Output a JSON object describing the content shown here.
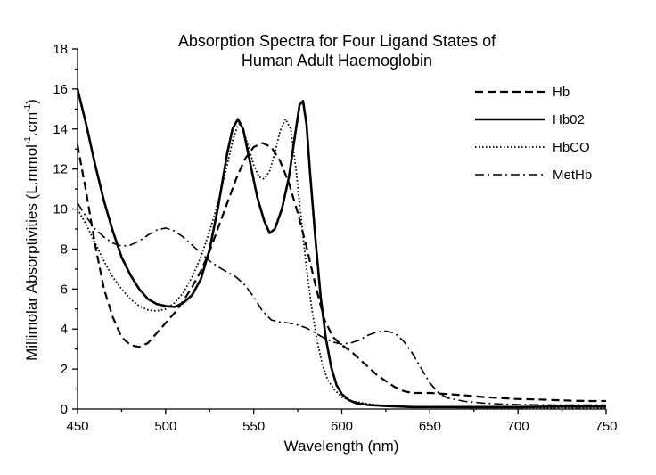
{
  "chart_data": {
    "type": "line",
    "title": [
      "Absorption Spectra for Four Ligand States of",
      "Human Adult Haemoglobin"
    ],
    "xlabel": "Wavelength (nm)",
    "ylabel": {
      "text": "Millimolar Absorptivities (L.mmol",
      "sup1": "-1",
      "mid": ".cm",
      "sup2": "-1",
      "end": ")"
    },
    "xlim": [
      450,
      750
    ],
    "ylim": [
      0,
      18
    ],
    "x_ticks": [
      450,
      500,
      550,
      600,
      650,
      700,
      750
    ],
    "y_ticks": [
      0,
      2,
      4,
      6,
      8,
      10,
      12,
      14,
      16,
      18
    ],
    "grid": false,
    "legend_position": "top-right",
    "series": [
      {
        "name": "Hb",
        "style": "dashed",
        "points": [
          [
            450,
            13.2
          ],
          [
            455,
            10.8
          ],
          [
            460,
            8.2
          ],
          [
            465,
            6.0
          ],
          [
            470,
            4.6
          ],
          [
            475,
            3.6
          ],
          [
            480,
            3.2
          ],
          [
            485,
            3.1
          ],
          [
            490,
            3.3
          ],
          [
            495,
            3.8
          ],
          [
            500,
            4.3
          ],
          [
            505,
            4.8
          ],
          [
            510,
            5.4
          ],
          [
            515,
            6.1
          ],
          [
            520,
            6.9
          ],
          [
            525,
            7.9
          ],
          [
            530,
            9.1
          ],
          [
            535,
            10.3
          ],
          [
            540,
            11.5
          ],
          [
            545,
            12.5
          ],
          [
            550,
            13.1
          ],
          [
            555,
            13.3
          ],
          [
            560,
            13.1
          ],
          [
            565,
            12.4
          ],
          [
            570,
            11.3
          ],
          [
            575,
            9.8
          ],
          [
            580,
            8.1
          ],
          [
            585,
            6.2
          ],
          [
            590,
            4.5
          ],
          [
            595,
            3.6
          ],
          [
            600,
            3.2
          ],
          [
            605,
            2.9
          ],
          [
            610,
            2.5
          ],
          [
            615,
            2.1
          ],
          [
            620,
            1.7
          ],
          [
            625,
            1.4
          ],
          [
            630,
            1.1
          ],
          [
            635,
            0.9
          ],
          [
            640,
            0.8
          ],
          [
            650,
            0.8
          ],
          [
            660,
            0.75
          ],
          [
            670,
            0.68
          ],
          [
            680,
            0.6
          ],
          [
            690,
            0.55
          ],
          [
            700,
            0.5
          ],
          [
            710,
            0.48
          ],
          [
            720,
            0.45
          ],
          [
            730,
            0.42
          ],
          [
            740,
            0.4
          ],
          [
            750,
            0.4
          ]
        ]
      },
      {
        "name": "Hb02",
        "style": "solid",
        "points": [
          [
            450,
            16.0
          ],
          [
            455,
            14.2
          ],
          [
            460,
            12.2
          ],
          [
            465,
            10.4
          ],
          [
            470,
            8.9
          ],
          [
            475,
            7.6
          ],
          [
            480,
            6.7
          ],
          [
            485,
            6.0
          ],
          [
            490,
            5.5
          ],
          [
            495,
            5.25
          ],
          [
            500,
            5.15
          ],
          [
            505,
            5.1
          ],
          [
            510,
            5.3
          ],
          [
            515,
            5.7
          ],
          [
            520,
            6.5
          ],
          [
            525,
            8.0
          ],
          [
            530,
            10.2
          ],
          [
            535,
            12.8
          ],
          [
            538,
            14.0
          ],
          [
            541,
            14.5
          ],
          [
            544,
            14.0
          ],
          [
            548,
            12.3
          ],
          [
            552,
            10.6
          ],
          [
            556,
            9.4
          ],
          [
            559,
            8.8
          ],
          [
            562,
            9.0
          ],
          [
            566,
            10.0
          ],
          [
            570,
            11.6
          ],
          [
            573,
            13.4
          ],
          [
            576,
            15.2
          ],
          [
            578,
            15.4
          ],
          [
            580,
            14.2
          ],
          [
            582,
            11.8
          ],
          [
            585,
            8.5
          ],
          [
            588,
            5.6
          ],
          [
            591,
            3.5
          ],
          [
            594,
            2.1
          ],
          [
            597,
            1.2
          ],
          [
            600,
            0.75
          ],
          [
            604,
            0.45
          ],
          [
            608,
            0.3
          ],
          [
            615,
            0.2
          ],
          [
            625,
            0.15
          ],
          [
            640,
            0.1
          ],
          [
            660,
            0.1
          ],
          [
            680,
            0.1
          ],
          [
            700,
            0.1
          ],
          [
            720,
            0.12
          ],
          [
            740,
            0.12
          ],
          [
            750,
            0.12
          ]
        ]
      },
      {
        "name": "HbCO",
        "style": "dotted",
        "points": [
          [
            450,
            10.0
          ],
          [
            455,
            9.2
          ],
          [
            460,
            8.3
          ],
          [
            465,
            7.4
          ],
          [
            470,
            6.6
          ],
          [
            475,
            6.0
          ],
          [
            480,
            5.5
          ],
          [
            485,
            5.15
          ],
          [
            490,
            4.95
          ],
          [
            495,
            4.9
          ],
          [
            500,
            5.0
          ],
          [
            505,
            5.3
          ],
          [
            510,
            5.8
          ],
          [
            515,
            6.6
          ],
          [
            520,
            7.6
          ],
          [
            525,
            8.9
          ],
          [
            530,
            10.4
          ],
          [
            535,
            12.2
          ],
          [
            538,
            13.4
          ],
          [
            541,
            14.2
          ],
          [
            543,
            14.3
          ],
          [
            546,
            13.4
          ],
          [
            550,
            12.2
          ],
          [
            553,
            11.6
          ],
          [
            556,
            11.5
          ],
          [
            559,
            11.9
          ],
          [
            562,
            12.8
          ],
          [
            565,
            13.9
          ],
          [
            568,
            14.5
          ],
          [
            571,
            14.0
          ],
          [
            574,
            12.0
          ],
          [
            577,
            9.5
          ],
          [
            580,
            7.0
          ],
          [
            583,
            5.0
          ],
          [
            586,
            3.4
          ],
          [
            589,
            2.2
          ],
          [
            592,
            1.45
          ],
          [
            596,
            0.95
          ],
          [
            600,
            0.6
          ],
          [
            605,
            0.4
          ],
          [
            612,
            0.3
          ],
          [
            620,
            0.2
          ],
          [
            640,
            0.1
          ],
          [
            660,
            0.08
          ],
          [
            680,
            0.06
          ],
          [
            700,
            0.05
          ],
          [
            720,
            0.06
          ],
          [
            750,
            0.06
          ]
        ]
      },
      {
        "name": "MetHb",
        "style": "dashdot",
        "points": [
          [
            450,
            10.3
          ],
          [
            455,
            9.6
          ],
          [
            460,
            9.0
          ],
          [
            465,
            8.6
          ],
          [
            470,
            8.3
          ],
          [
            475,
            8.15
          ],
          [
            480,
            8.2
          ],
          [
            485,
            8.4
          ],
          [
            490,
            8.7
          ],
          [
            495,
            8.95
          ],
          [
            500,
            9.05
          ],
          [
            505,
            8.9
          ],
          [
            510,
            8.6
          ],
          [
            515,
            8.2
          ],
          [
            520,
            7.8
          ],
          [
            525,
            7.4
          ],
          [
            530,
            7.1
          ],
          [
            535,
            6.85
          ],
          [
            540,
            6.6
          ],
          [
            545,
            6.2
          ],
          [
            550,
            5.6
          ],
          [
            555,
            4.9
          ],
          [
            560,
            4.45
          ],
          [
            565,
            4.35
          ],
          [
            570,
            4.3
          ],
          [
            575,
            4.2
          ],
          [
            580,
            4.05
          ],
          [
            585,
            3.8
          ],
          [
            590,
            3.55
          ],
          [
            595,
            3.35
          ],
          [
            600,
            3.25
          ],
          [
            605,
            3.3
          ],
          [
            610,
            3.45
          ],
          [
            615,
            3.7
          ],
          [
            620,
            3.85
          ],
          [
            625,
            3.9
          ],
          [
            630,
            3.8
          ],
          [
            635,
            3.4
          ],
          [
            640,
            2.8
          ],
          [
            645,
            2.05
          ],
          [
            650,
            1.3
          ],
          [
            655,
            0.8
          ],
          [
            660,
            0.55
          ],
          [
            670,
            0.38
          ],
          [
            680,
            0.3
          ],
          [
            690,
            0.25
          ],
          [
            700,
            0.22
          ],
          [
            720,
            0.2
          ],
          [
            750,
            0.2
          ]
        ]
      }
    ]
  }
}
